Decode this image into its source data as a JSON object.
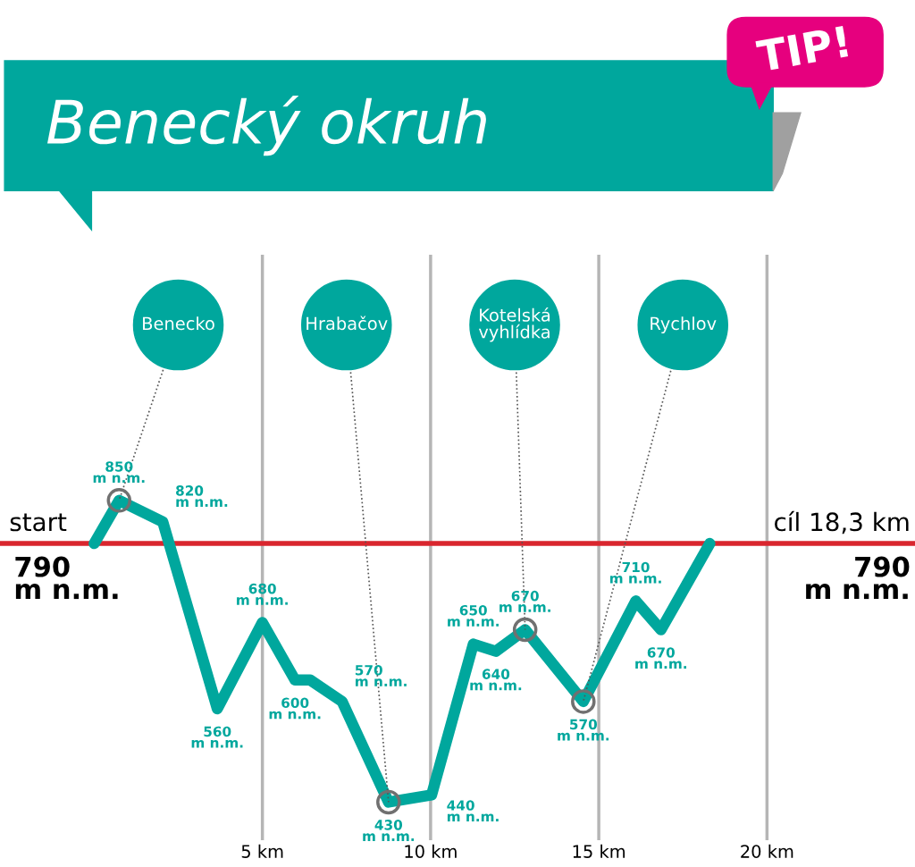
{
  "chart_data": {
    "type": "line",
    "title": "Benecký okruh",
    "x": [
      0,
      0.74,
      2.04,
      3.66,
      5.0,
      5.97,
      6.42,
      7.37,
      8.75,
      10.03,
      11.27,
      11.94,
      12.81,
      14.54,
      16.1,
      16.85,
      18.3
    ],
    "series": [
      {
        "color": "#00a79d",
        "values": [
          790,
          850,
          820,
          560,
          680,
          600,
          600,
          570,
          430,
          440,
          650,
          640,
          670,
          570,
          710,
          670,
          790
        ],
        "value_labels": [
          null,
          "850\nm n.m.",
          "820\nm n.m.",
          "560\nm n.m.",
          "680\nm n.m.",
          "600\nm n.m.",
          null,
          "570\nm n.m.",
          "430\nm n.m.",
          "440\nm n.m.",
          "650\nm n.m.",
          "640\nm n.m.",
          "670\nm n.m.",
          "570\nm n.m.",
          "710\nm n.m.",
          "670\nm n.m.",
          null
        ]
      }
    ],
    "xlim": [
      -2.8,
      24.4
    ],
    "ylim": [
      377,
      1192
    ],
    "xticks": [
      {
        "value": 5,
        "label": "5 km"
      },
      {
        "value": 10,
        "label": "10 km"
      },
      {
        "value": 15,
        "label": "15 km"
      },
      {
        "value": 20,
        "label": "20 km"
      }
    ],
    "tick_labels": "x",
    "grid": "x",
    "line_style": "solid",
    "ref_lines": [
      {
        "axis": "y",
        "value": 790,
        "label": "start",
        "color": "#d9262e"
      }
    ],
    "annotations": [
      {
        "text": "Benecko",
        "x": 0.74,
        "y": 850
      },
      {
        "text": "Hrabačov",
        "x": 8.75,
        "y": 430
      },
      {
        "text": "Kotelská\nvyhlídka",
        "x": 12.81,
        "y": 670
      },
      {
        "text": "Rychlov",
        "x": 14.54,
        "y": 570
      },
      "cíl 18,3 km",
      "790\nm n.m.",
      "790\nm n.m.",
      "TIP!"
    ]
  }
}
